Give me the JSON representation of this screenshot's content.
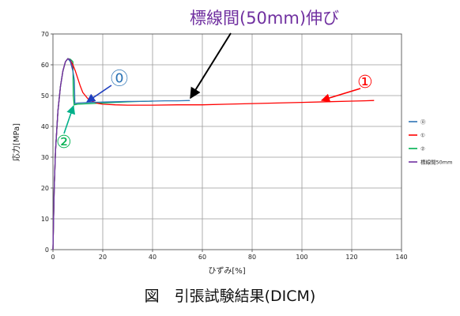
{
  "chart_data": {
    "type": "line",
    "caption": "図　引張試験結果(DICM)",
    "xlabel": "ひずみ[%]",
    "ylabel": "応力[MPa]",
    "xlim": [
      0,
      140
    ],
    "ylim": [
      0,
      70
    ],
    "xticks": [
      "0",
      "20",
      "40",
      "60",
      "80",
      "100",
      "120",
      "140"
    ],
    "yticks": [
      "0",
      "10",
      "20",
      "30",
      "40",
      "50",
      "60",
      "70"
    ],
    "grid": true,
    "legend_position": "right",
    "series": [
      {
        "name": "⓪",
        "color": "#2e75b6",
        "x": [
          0,
          0.5,
          1,
          2,
          3,
          4,
          5,
          6,
          7,
          8,
          8.6,
          8.8,
          9,
          10,
          12,
          15,
          20,
          25,
          30,
          35,
          40,
          45,
          50,
          55
        ],
        "y": [
          0,
          20,
          32,
          45,
          53,
          58,
          61,
          62,
          61,
          58,
          55,
          47.5,
          47.5,
          47.6,
          47.7,
          47.8,
          47.9,
          48.0,
          48.1,
          48.1,
          48.2,
          48.3,
          48.3,
          48.4
        ]
      },
      {
        "name": "①",
        "color": "#ff0000",
        "x": [
          0,
          0.5,
          1,
          2,
          3,
          4,
          5,
          6,
          7,
          8,
          9,
          10,
          11,
          12,
          14,
          16,
          18,
          20,
          25,
          30,
          40,
          50,
          60,
          70,
          80,
          90,
          100,
          110,
          120,
          125,
          129
        ],
        "y": [
          0,
          20,
          32,
          45,
          53,
          58,
          61,
          62,
          61.5,
          60,
          58,
          55.5,
          53,
          51,
          49,
          48,
          47.5,
          47.2,
          47,
          46.9,
          46.9,
          47,
          47,
          47.2,
          47.4,
          47.6,
          47.8,
          48,
          48.2,
          48.3,
          48.4
        ]
      },
      {
        "name": "②",
        "color": "#00b050",
        "x": [
          0,
          0.5,
          1,
          2,
          3,
          4,
          5,
          6,
          7,
          8,
          8.2,
          8.5,
          10,
          15,
          20,
          25,
          30,
          35,
          40
        ],
        "y": [
          0,
          20,
          32,
          45,
          53,
          58,
          61,
          62,
          61.8,
          61,
          50,
          47,
          47.2,
          47.4,
          47.6,
          47.8,
          48,
          48.1,
          48.2
        ]
      },
      {
        "name": "標線間50mm",
        "color": "#7030a0",
        "x": [
          0,
          0.5,
          1,
          2,
          3,
          4,
          5,
          6,
          7,
          8
        ],
        "y": [
          0,
          20,
          32,
          45,
          53,
          58,
          61,
          62,
          61.5,
          58.5
        ]
      }
    ],
    "annotations": [
      {
        "id": "ann-gauge",
        "text": "標線間(50mm)伸び",
        "color": "#7030a0"
      },
      {
        "id": "ann-0",
        "text": "⓪",
        "color": "#2e75b6"
      },
      {
        "id": "ann-1",
        "text": "①",
        "color": "#ff0000"
      },
      {
        "id": "ann-2",
        "text": "②",
        "color": "#00b050"
      }
    ]
  }
}
